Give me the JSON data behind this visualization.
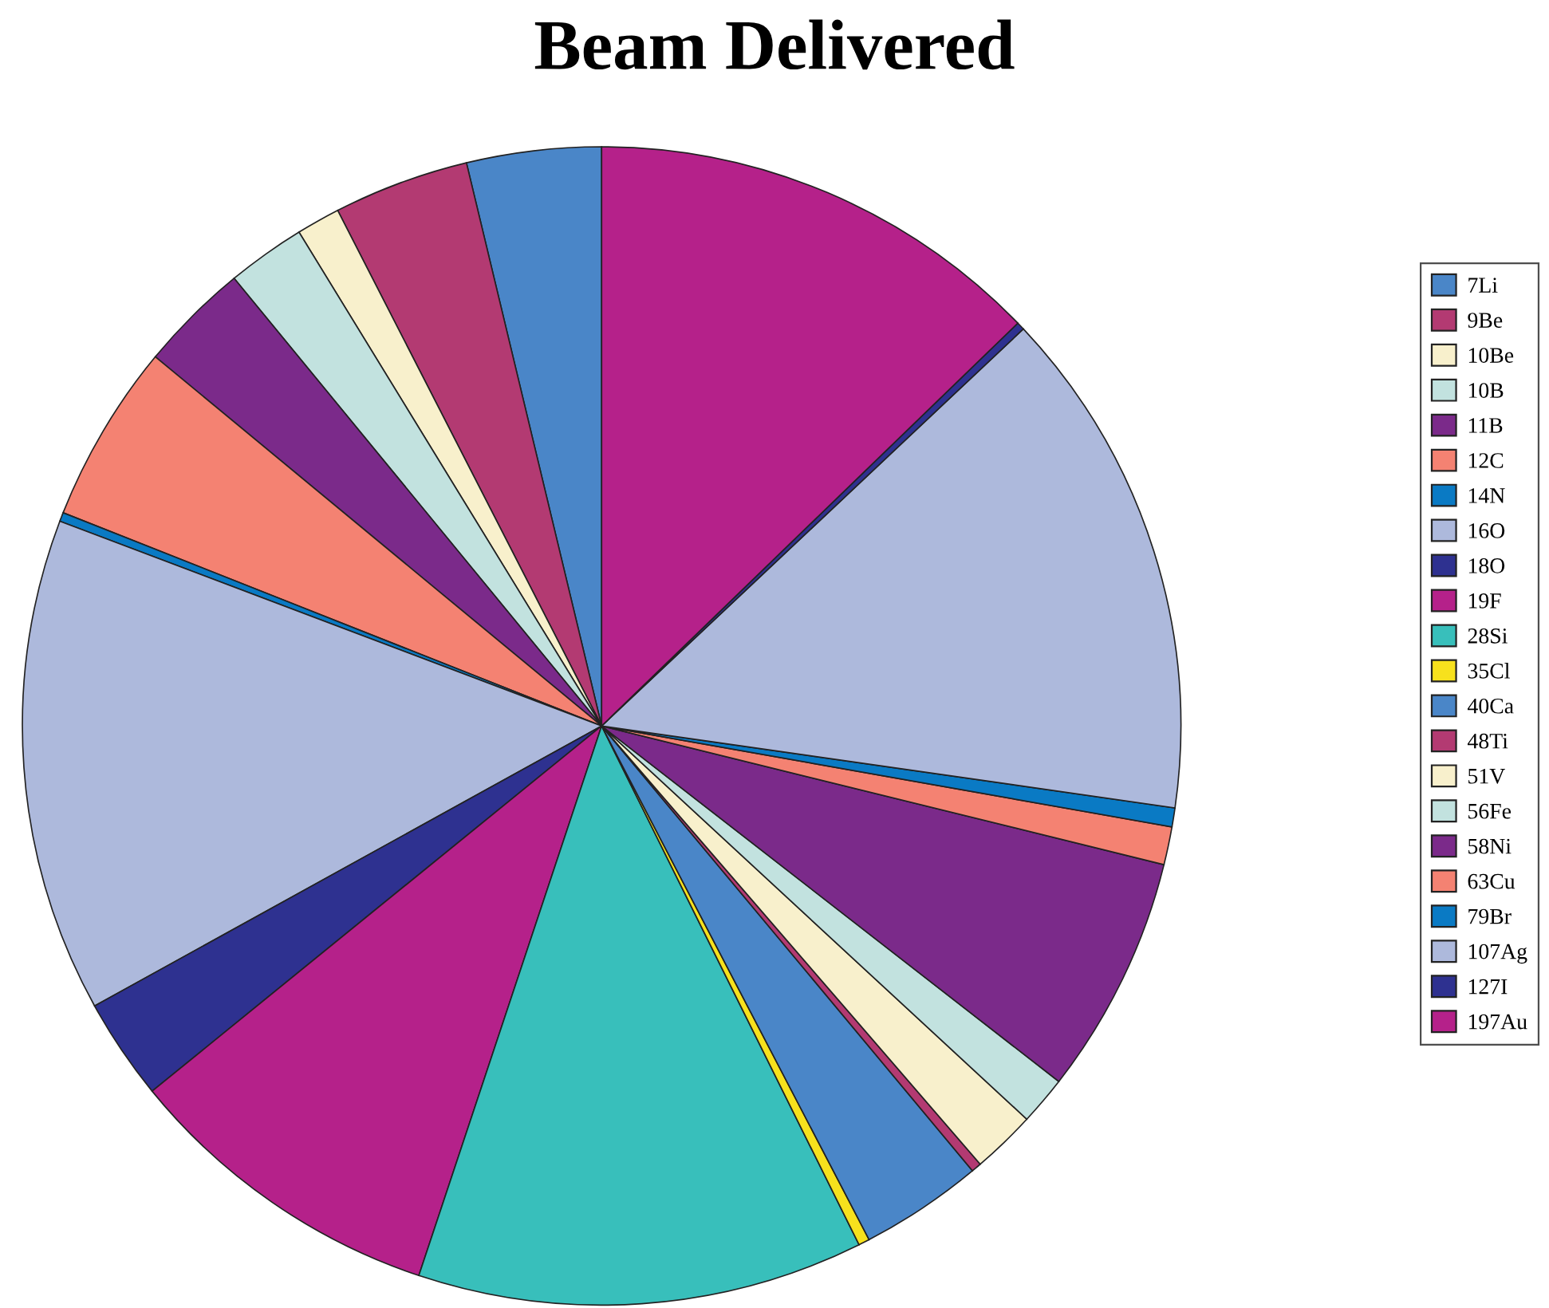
{
  "chart_data": {
    "type": "pie",
    "title": "Beam Delivered",
    "categories": [
      "7Li",
      "9Be",
      "10Be",
      "10B",
      "11B",
      "12C",
      "14N",
      "16O",
      "18O",
      "19F",
      "28Si",
      "35Cl",
      "40Ca",
      "48Ti",
      "51V",
      "56Fe",
      "58Ni",
      "63Cu",
      "79Br",
      "107Ag",
      "127I",
      "197Au"
    ],
    "values": [
      3.75,
      3.78,
      1.22,
      2.19,
      3.06,
      5.0,
      0.25,
      13.78,
      2.83,
      9.03,
      12.44,
      0.31,
      3.42,
      0.28,
      1.78,
      1.36,
      6.67,
      1.06,
      0.53,
      14.28,
      0.22,
      12.76
    ],
    "colors": [
      "#4a86c8",
      "#b33a72",
      "#f8f0cc",
      "#c2e2df",
      "#7b2a8a",
      "#f48272",
      "#0a7ac4",
      "#adb9dc",
      "#2e3190",
      "#b5218a",
      "#38bfbb",
      "#f7e11d",
      "#4a86c8",
      "#b33a72",
      "#f8f0cc",
      "#c2e2df",
      "#7b2a8a",
      "#f48272",
      "#0a7ac4",
      "#adb9dc",
      "#2e3190",
      "#b5218a"
    ],
    "legend": "right"
  }
}
